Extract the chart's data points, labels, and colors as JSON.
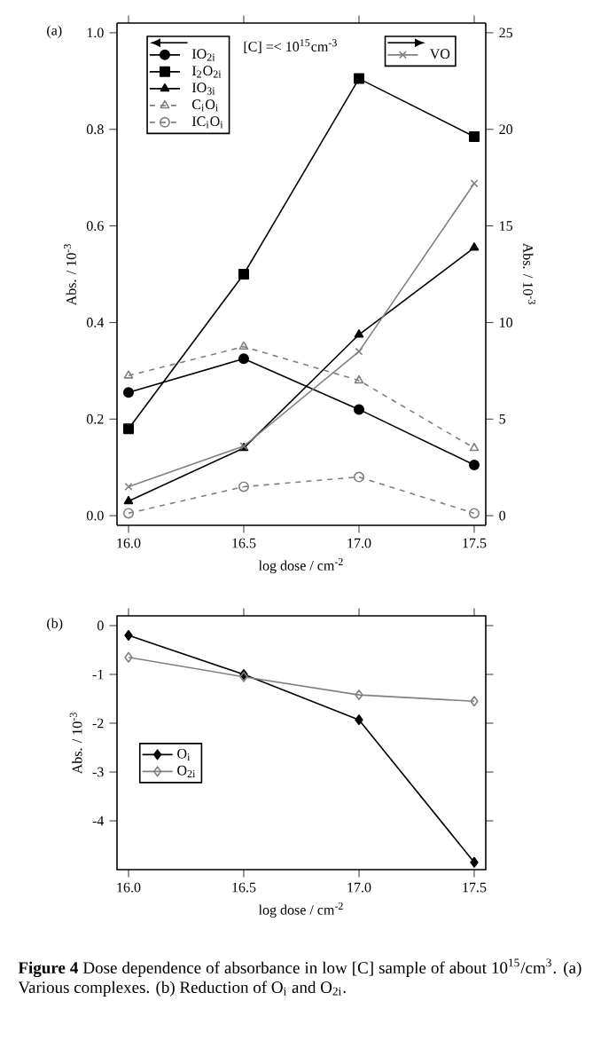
{
  "chart_data": [
    {
      "type": "line",
      "xlabel": "log dose / cm$^{-2}$",
      "ylabel": "Abs. / 10$^{-3}$",
      "y2label": "Abs. / 10$^{-3}$",
      "x": [
        16.0,
        16.5,
        17.0,
        17.5
      ],
      "series": [
        {
          "name": "IO$_{2i}$",
          "color": "#000000",
          "marker": "circle",
          "line_style": "solid",
          "values": [
            0.255,
            0.325,
            0.22,
            0.105
          ]
        },
        {
          "name": "I$_{2}$O$_{2i}$",
          "color": "#000000",
          "marker": "square",
          "line_style": "solid",
          "values": [
            0.18,
            0.5,
            0.905,
            0.785
          ]
        },
        {
          "name": "IO$_{3i}$",
          "color": "#000000",
          "marker": "triangle",
          "line_style": "solid",
          "values": [
            0.03,
            0.14,
            0.375,
            0.555
          ]
        },
        {
          "name": "C$_{i}$O$_{i}$",
          "color": "#808080",
          "marker": "triangle-open",
          "line_style": "dashed",
          "values": [
            0.29,
            0.35,
            0.28,
            0.14
          ]
        },
        {
          "name": "IC$_{i}$O$_{i}$",
          "color": "#808080",
          "marker": "circle-open",
          "line_style": "dashed",
          "values": [
            0.005,
            0.06,
            0.08,
            0.005
          ]
        },
        {
          "name": "VO",
          "color": "#808080",
          "marker": "cross",
          "line_style": "solid",
          "axis": "y2",
          "values": [
            1.5,
            3.6,
            8.5,
            17.2
          ]
        }
      ],
      "xlim": [
        15.95,
        17.55
      ],
      "ylim": [
        -0.02,
        1.02
      ],
      "y2lim": [
        -0.5,
        25.5
      ],
      "xticks": [
        {
          "value": 16.0,
          "label": "16.0"
        },
        {
          "value": 16.5,
          "label": "16.5"
        },
        {
          "value": 17.0,
          "label": "17.0"
        },
        {
          "value": 17.5,
          "label": "17.5"
        }
      ],
      "yticks": [
        {
          "value": 0,
          "label": "0.0"
        },
        {
          "value": 0.2,
          "label": "0.2"
        },
        {
          "value": 0.4,
          "label": "0.4"
        },
        {
          "value": 0.6,
          "label": "0.6"
        },
        {
          "value": 0.8,
          "label": "0.8"
        },
        {
          "value": 1.0,
          "label": "1.0"
        }
      ],
      "y2ticks": [
        0,
        5,
        10,
        15,
        20,
        25
      ],
      "legend": "top left",
      "annotations": [
        "(a)",
        "[C] =< 10$^{15}$cm$^{-3}$"
      ]
    },
    {
      "type": "line",
      "xlabel": "log dose / cm$^{-2}$",
      "ylabel": "Abs. / 10$^{-3}$",
      "x": [
        16.0,
        16.5,
        17.0,
        17.5
      ],
      "series": [
        {
          "name": "O$_{i}$",
          "color": "#000000",
          "marker": "diamond",
          "line_style": "solid",
          "values": [
            -0.2,
            -1.0,
            -1.93,
            -4.85
          ]
        },
        {
          "name": "O$_{2i}$",
          "color": "#808080",
          "marker": "diamond-open",
          "line_style": "solid",
          "values": [
            -0.65,
            -1.05,
            -1.42,
            -1.55
          ]
        }
      ],
      "xlim": [
        15.95,
        17.55
      ],
      "ylim": [
        -5.0,
        0.2
      ],
      "xticks": [
        {
          "value": 16.0,
          "label": "16.0"
        },
        {
          "value": 16.5,
          "label": "16.5"
        },
        {
          "value": 17.0,
          "label": "17.0"
        },
        {
          "value": 17.5,
          "label": "17.5"
        }
      ],
      "yticks": [
        0,
        -1,
        -2,
        -3,
        -4
      ],
      "legend": "left",
      "annotations": [
        "(b)",
        "**Figure 4** Dose dependence of absorbance in low [C] sample of about 10$^{15}$/cm$^{3}$. (a) Various complexes. (b) Reduction of O$_{i}$ and O$_{2i}$."
      ]
    }
  ]
}
